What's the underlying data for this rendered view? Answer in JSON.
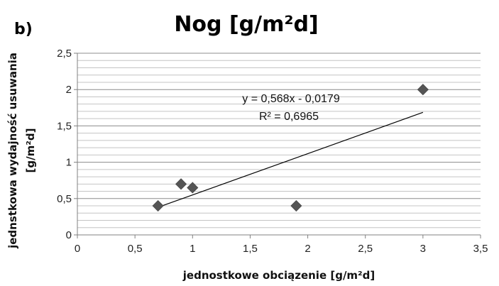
{
  "figure": {
    "panel_label": "b)",
    "title": "Nog  [g/m²d]"
  },
  "chart_data": {
    "type": "scatter",
    "title": "Nog  [g/m²d]",
    "xlabel": "jednostkowe obciązenie  [g/m²d]",
    "ylabel_line1": "jednstkowa wydajność usuwania",
    "ylabel_line2": "[g/m²d]",
    "xlim": [
      0,
      3.5
    ],
    "ylim": [
      0,
      2.5
    ],
    "x_ticks": [
      "0",
      "0,5",
      "1",
      "1,5",
      "2",
      "2,5",
      "3",
      "3,5"
    ],
    "y_ticks": [
      "0",
      "0,5",
      "1",
      "1,5",
      "2",
      "2,5"
    ],
    "x_tick_values": [
      0,
      0.5,
      1,
      1.5,
      2,
      2.5,
      3,
      3.5
    ],
    "y_tick_values": [
      0,
      0.5,
      1,
      1.5,
      2,
      2.5
    ],
    "grid": "horizontal",
    "minor_gridline_step": 0.1,
    "series": [
      {
        "marker": "diamond",
        "color": "#555555",
        "x": [
          0.7,
          0.9,
          1.0,
          1.9,
          3.0
        ],
        "y": [
          0.4,
          0.7,
          0.65,
          0.4,
          2.0
        ]
      }
    ],
    "trendline": {
      "type": "linear",
      "slope": 0.568,
      "intercept": -0.0179,
      "x_range": [
        0.7,
        3.0
      ],
      "color": "#000000",
      "equation": "y = 0,568x - 0,0179",
      "r_squared": "R² = 0,6965"
    }
  }
}
